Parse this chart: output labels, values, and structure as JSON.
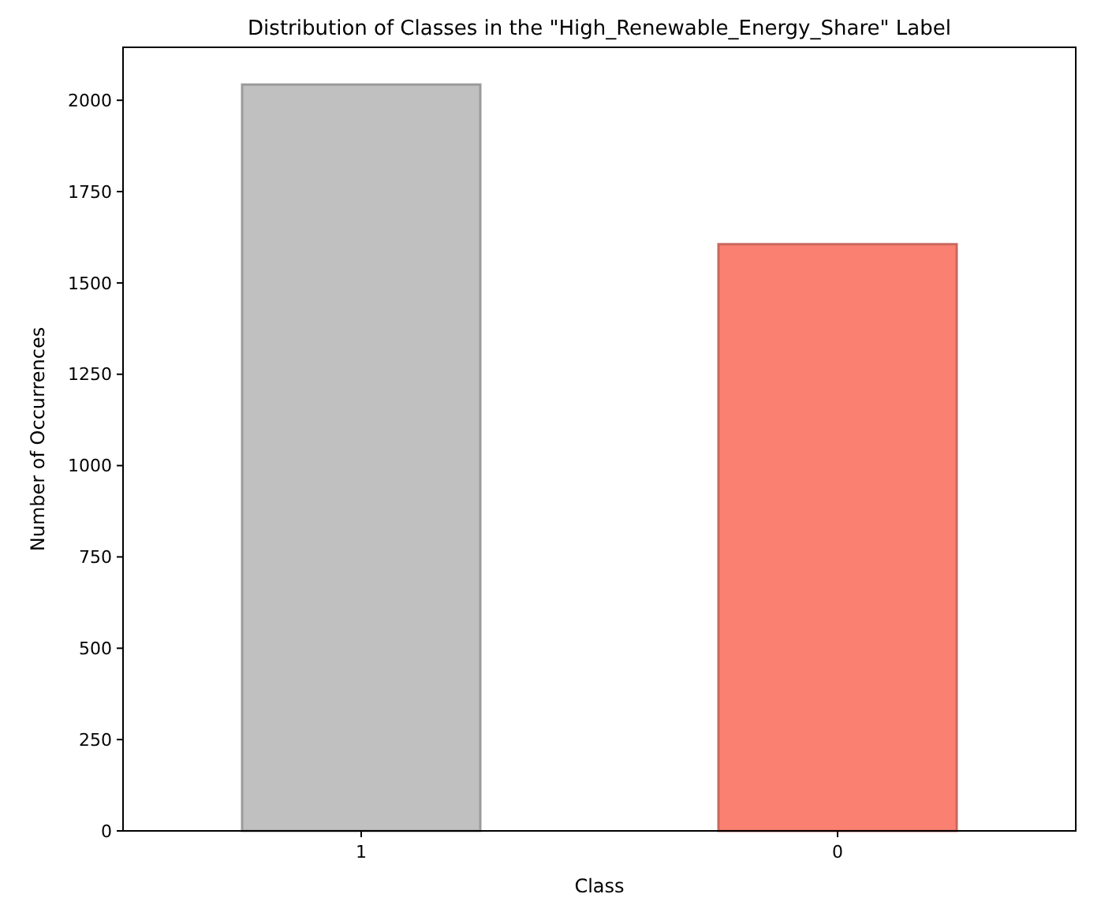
{
  "chart_data": {
    "type": "bar",
    "title": "Distribution of Classes in the \"High_Renewable_Energy_Share\" Label",
    "xlabel": "Class",
    "ylabel": "Number of Occurrences",
    "categories": [
      "1",
      "0"
    ],
    "values": [
      2043,
      1606
    ],
    "colors": [
      "#c0c0c0",
      "#fa8072"
    ],
    "ylim": [
      0,
      2145
    ],
    "yticks": [
      0,
      250,
      500,
      750,
      1000,
      1250,
      1500,
      1750,
      2000
    ],
    "grid": false
  }
}
